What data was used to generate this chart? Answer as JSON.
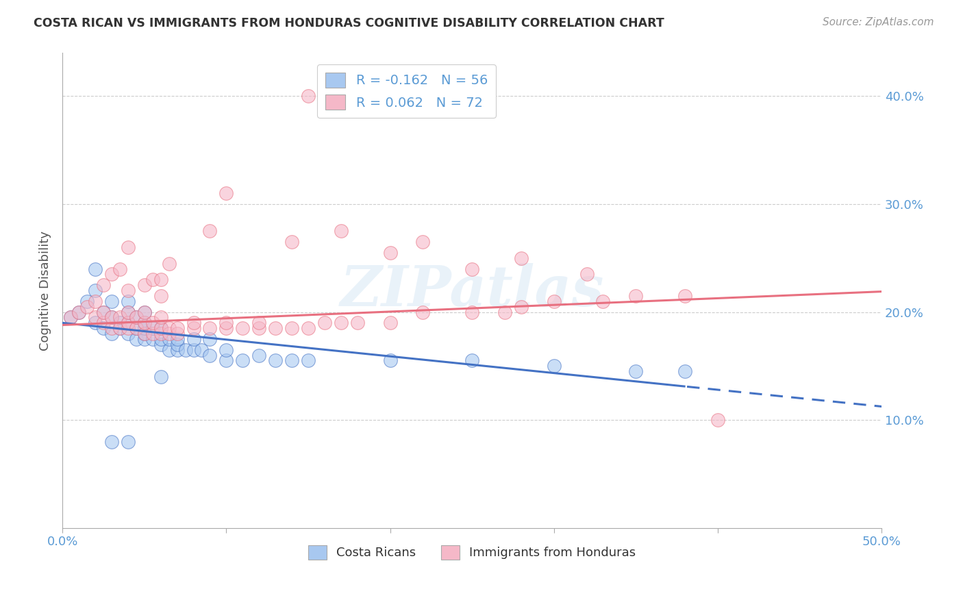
{
  "title": "COSTA RICAN VS IMMIGRANTS FROM HONDURAS COGNITIVE DISABILITY CORRELATION CHART",
  "source": "Source: ZipAtlas.com",
  "ylabel": "Cognitive Disability",
  "xlim": [
    0.0,
    0.5
  ],
  "ylim": [
    0.0,
    0.44
  ],
  "color_blue": "#A8C8F0",
  "color_pink": "#F5B8C8",
  "line_blue": "#4472C4",
  "line_pink": "#E87080",
  "watermark": "ZIPatlas",
  "legend_label1": "Costa Ricans",
  "legend_label2": "Immigrants from Honduras",
  "blue_intercept": 0.19,
  "blue_slope": -0.155,
  "pink_intercept": 0.188,
  "pink_slope": 0.062,
  "blue_x": [
    0.005,
    0.01,
    0.015,
    0.02,
    0.02,
    0.025,
    0.025,
    0.03,
    0.03,
    0.03,
    0.035,
    0.035,
    0.04,
    0.04,
    0.04,
    0.04,
    0.045,
    0.045,
    0.045,
    0.05,
    0.05,
    0.05,
    0.05,
    0.05,
    0.055,
    0.055,
    0.06,
    0.06,
    0.06,
    0.065,
    0.065,
    0.07,
    0.07,
    0.07,
    0.075,
    0.08,
    0.08,
    0.085,
    0.09,
    0.09,
    0.1,
    0.1,
    0.11,
    0.12,
    0.13,
    0.14,
    0.15,
    0.2,
    0.25,
    0.3,
    0.35,
    0.38,
    0.02,
    0.03,
    0.04,
    0.06
  ],
  "blue_y": [
    0.195,
    0.2,
    0.21,
    0.19,
    0.22,
    0.185,
    0.2,
    0.18,
    0.195,
    0.21,
    0.185,
    0.19,
    0.18,
    0.19,
    0.2,
    0.21,
    0.175,
    0.185,
    0.195,
    0.175,
    0.18,
    0.185,
    0.19,
    0.2,
    0.175,
    0.185,
    0.17,
    0.175,
    0.185,
    0.165,
    0.175,
    0.165,
    0.17,
    0.175,
    0.165,
    0.165,
    0.175,
    0.165,
    0.16,
    0.175,
    0.155,
    0.165,
    0.155,
    0.16,
    0.155,
    0.155,
    0.155,
    0.155,
    0.155,
    0.15,
    0.145,
    0.145,
    0.24,
    0.08,
    0.08,
    0.14
  ],
  "pink_x": [
    0.005,
    0.01,
    0.015,
    0.02,
    0.02,
    0.025,
    0.025,
    0.03,
    0.03,
    0.035,
    0.035,
    0.04,
    0.04,
    0.04,
    0.045,
    0.045,
    0.05,
    0.05,
    0.05,
    0.055,
    0.055,
    0.06,
    0.06,
    0.06,
    0.065,
    0.065,
    0.07,
    0.07,
    0.08,
    0.08,
    0.09,
    0.1,
    0.1,
    0.11,
    0.12,
    0.12,
    0.13,
    0.14,
    0.15,
    0.16,
    0.17,
    0.18,
    0.2,
    0.22,
    0.25,
    0.27,
    0.28,
    0.3,
    0.33,
    0.35,
    0.38,
    0.025,
    0.03,
    0.035,
    0.04,
    0.04,
    0.05,
    0.055,
    0.06,
    0.06,
    0.065,
    0.09,
    0.14,
    0.17,
    0.2,
    0.22,
    0.25,
    0.28,
    0.32,
    0.4,
    0.1,
    0.15
  ],
  "pink_y": [
    0.195,
    0.2,
    0.205,
    0.195,
    0.21,
    0.19,
    0.2,
    0.185,
    0.195,
    0.185,
    0.195,
    0.185,
    0.19,
    0.2,
    0.185,
    0.195,
    0.18,
    0.19,
    0.2,
    0.18,
    0.19,
    0.18,
    0.185,
    0.195,
    0.18,
    0.185,
    0.18,
    0.185,
    0.185,
    0.19,
    0.185,
    0.185,
    0.19,
    0.185,
    0.185,
    0.19,
    0.185,
    0.185,
    0.185,
    0.19,
    0.19,
    0.19,
    0.19,
    0.2,
    0.2,
    0.2,
    0.205,
    0.21,
    0.21,
    0.215,
    0.215,
    0.225,
    0.235,
    0.24,
    0.26,
    0.22,
    0.225,
    0.23,
    0.215,
    0.23,
    0.245,
    0.275,
    0.265,
    0.275,
    0.255,
    0.265,
    0.24,
    0.25,
    0.235,
    0.1,
    0.31,
    0.4
  ]
}
